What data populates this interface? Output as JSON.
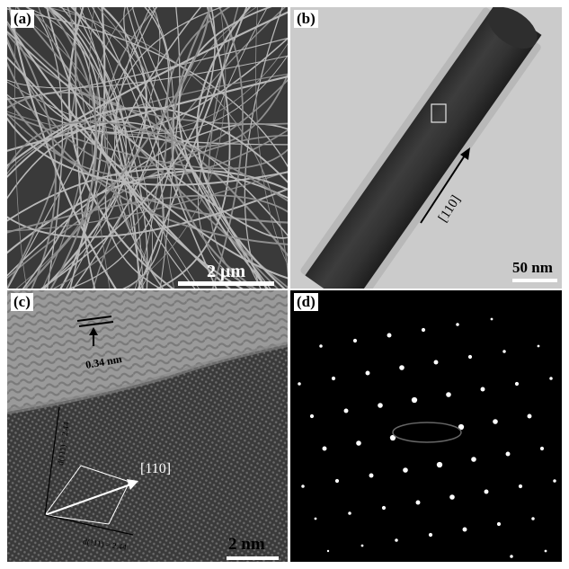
{
  "figure": {
    "panels": [
      {
        "id": "a",
        "label": "(a)",
        "kind": "SEM image of nanowire network",
        "scale_bar": "2 μm"
      },
      {
        "id": "b",
        "label": "(b)",
        "kind": "TEM image of single nanowire",
        "scale_bar": "50 nm",
        "direction": "[110]"
      },
      {
        "id": "c",
        "label": "(c)",
        "kind": "HRTEM lattice image",
        "scale_bar": "2 nm",
        "spacing": "0.34 nm",
        "direction": "[110]",
        "plane_1": "d(111) = 2.44",
        "plane_2": "d(111) = 2.44"
      },
      {
        "id": "d",
        "label": "(d)",
        "kind": "Selected area electron diffraction pattern"
      }
    ]
  }
}
